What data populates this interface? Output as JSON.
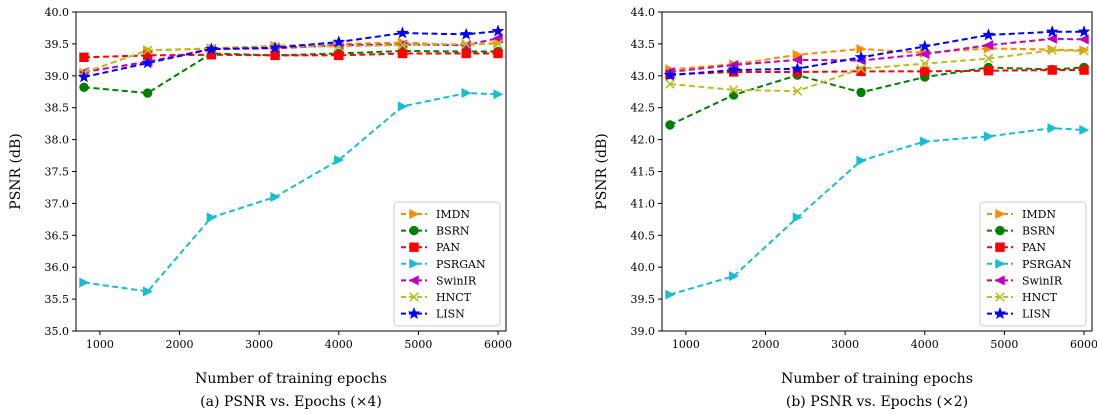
{
  "chart_data": [
    {
      "type": "line",
      "caption": "(a) PSNR vs. Epochs (×4)",
      "xlabel": "Number of training epochs",
      "ylabel": "PSNR (dB)",
      "xlim": [
        700,
        6100
      ],
      "ylim": [
        35.0,
        40.0
      ],
      "xticks": [
        "1000",
        "2000",
        "3000",
        "4000",
        "5000",
        "6000"
      ],
      "xtick_values": [
        1000,
        2000,
        3000,
        4000,
        5000,
        6000
      ],
      "yticks": [
        "35.0",
        "35.5",
        "36.0",
        "36.5",
        "37.0",
        "37.5",
        "38.0",
        "38.5",
        "39.0",
        "39.5",
        "40.0"
      ],
      "ytick_values": [
        35.0,
        35.5,
        36.0,
        36.5,
        37.0,
        37.5,
        38.0,
        38.5,
        39.0,
        39.5,
        40.0
      ],
      "legend_position": "lower-right",
      "grid": false,
      "x": [
        800,
        1600,
        2400,
        3200,
        4000,
        4800,
        5600,
        6000
      ],
      "series": [
        {
          "name": "IMDN",
          "color": "#ff8c00",
          "marker": "triangle-right",
          "values": [
            39.05,
            39.4,
            39.43,
            39.47,
            39.5,
            39.52,
            39.48,
            39.52
          ]
        },
        {
          "name": "BSRN",
          "color": "#008000",
          "marker": "circle",
          "values": [
            38.82,
            38.73,
            39.35,
            39.32,
            39.35,
            39.39,
            39.38,
            39.38
          ]
        },
        {
          "name": "PAN",
          "color": "#ff0000",
          "marker": "square",
          "values": [
            39.29,
            39.32,
            39.33,
            39.32,
            39.32,
            39.35,
            39.35,
            39.35
          ]
        },
        {
          "name": "PSRGAN",
          "color": "#17becf",
          "marker": "triangle-right",
          "values": [
            35.76,
            35.62,
            36.78,
            37.1,
            37.68,
            38.52,
            38.73,
            38.71
          ]
        },
        {
          "name": "SwinIR",
          "color": "#bf00bf",
          "marker": "triangle-left",
          "values": [
            39.06,
            39.22,
            39.42,
            39.43,
            39.48,
            39.49,
            39.48,
            39.59
          ]
        },
        {
          "name": "HNCT",
          "color": "#bcbd22",
          "marker": "x",
          "values": [
            39.05,
            39.4,
            39.42,
            39.46,
            39.46,
            39.48,
            39.5,
            39.5
          ]
        },
        {
          "name": "LISN",
          "color": "#0000ff",
          "marker": "star",
          "values": [
            38.98,
            39.2,
            39.42,
            39.44,
            39.53,
            39.67,
            39.65,
            39.7
          ]
        }
      ]
    },
    {
      "type": "line",
      "caption": "(b) PSNR vs. Epochs (×2)",
      "xlabel": "Number of training epochs",
      "ylabel": "PSNR (dB)",
      "xlim": [
        700,
        6100
      ],
      "ylim": [
        39.0,
        44.0
      ],
      "xticks": [
        "1000",
        "2000",
        "3000",
        "4000",
        "5000",
        "6000"
      ],
      "xtick_values": [
        1000,
        2000,
        3000,
        4000,
        5000,
        6000
      ],
      "yticks": [
        "39.0",
        "39.5",
        "40.0",
        "40.5",
        "41.0",
        "41.5",
        "42.0",
        "42.5",
        "43.0",
        "43.5",
        "44.0"
      ],
      "ytick_values": [
        39.0,
        39.5,
        40.0,
        40.5,
        41.0,
        41.5,
        42.0,
        42.5,
        43.0,
        43.5,
        44.0
      ],
      "legend_position": "lower-right",
      "grid": false,
      "x": [
        800,
        1600,
        2400,
        3200,
        4000,
        4800,
        5600,
        6000
      ],
      "series": [
        {
          "name": "IMDN",
          "color": "#ff8c00",
          "marker": "triangle-right",
          "values": [
            43.1,
            43.18,
            43.33,
            43.42,
            43.36,
            43.43,
            43.41,
            43.4
          ]
        },
        {
          "name": "BSRN",
          "color": "#008000",
          "marker": "circle",
          "values": [
            42.23,
            42.7,
            43.01,
            42.74,
            42.98,
            43.13,
            43.1,
            43.13
          ]
        },
        {
          "name": "PAN",
          "color": "#ff0000",
          "marker": "square",
          "values": [
            43.02,
            43.06,
            43.06,
            43.07,
            43.07,
            43.08,
            43.09,
            43.09
          ]
        },
        {
          "name": "PSRGAN",
          "color": "#17becf",
          "marker": "triangle-right",
          "values": [
            39.57,
            39.86,
            40.78,
            41.67,
            41.97,
            42.05,
            42.18,
            42.15
          ]
        },
        {
          "name": "SwinIR",
          "color": "#bf00bf",
          "marker": "triangle-left",
          "values": [
            43.06,
            43.17,
            43.25,
            43.24,
            43.34,
            43.48,
            43.58,
            43.57
          ]
        },
        {
          "name": "HNCT",
          "color": "#bcbd22",
          "marker": "x",
          "values": [
            42.87,
            42.78,
            42.76,
            43.11,
            43.19,
            43.27,
            43.4,
            43.39
          ]
        },
        {
          "name": "LISN",
          "color": "#0000ff",
          "marker": "star",
          "values": [
            43.01,
            43.09,
            43.11,
            43.29,
            43.46,
            43.64,
            43.69,
            43.69
          ]
        }
      ]
    }
  ]
}
